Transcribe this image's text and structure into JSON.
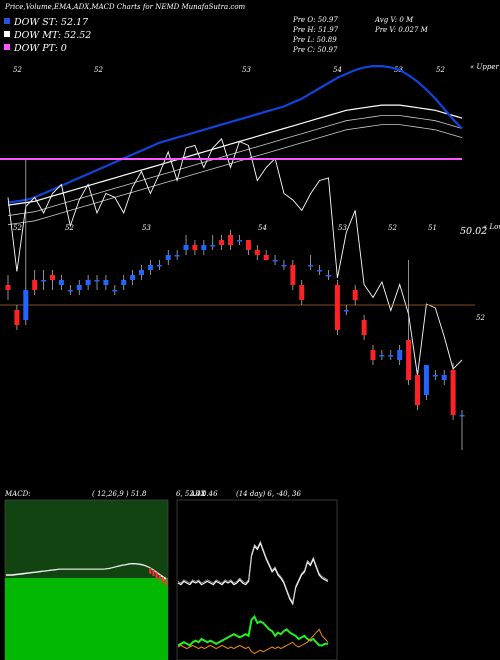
{
  "header": {
    "title": "Price,Volume,EMA,ADX,MACD Charts for NEMD MunafaSutra.com",
    "legend": [
      {
        "label": "DOW ST: 52.17",
        "color": "#2255dd"
      },
      {
        "label": "DOW MT: 52.52",
        "color": "#ffffff"
      },
      {
        "label": "DOW PT: 0",
        "color": "#ff55ff"
      }
    ],
    "ohlc": {
      "open": "Pre   O: 50.97",
      "high": "Pre   H: 51.97",
      "low": "Pre   L: 50.89",
      "close": "Pre   C: 50.97"
    },
    "volume": {
      "avg": "Avg V: 0   M",
      "pre": "Pre   V: 0.027 M"
    }
  },
  "top_panel": {
    "top_labels": [
      "52",
      "52",
      "53",
      "54",
      "53",
      "52"
    ],
    "bottom_labels": [
      "52",
      "52",
      "53",
      "54",
      "53",
      "52",
      "51"
    ],
    "last_value": "50.02",
    "upper_tag": "« Upper",
    "lower_tag": "« Lower"
  },
  "candle_panel": {
    "price_line_label": "52"
  },
  "macd_panel": {
    "title": "MACD:",
    "params": "( 12,26,9 ) 51.8",
    "values": "6, 52.43",
    "trail": "0.46"
  },
  "adx_panel": {
    "title": "ADX",
    "params": "(14  day) 6,  -40,  36"
  },
  "chart_data": {
    "type": "candlestick",
    "colors": {
      "up": "#2266ff",
      "down": "#ff2222",
      "ema_short": "#1144dd",
      "ema_long": "#ffffff",
      "pt_line": "#ff55ff",
      "price_line": "#aa6633",
      "macd_bg": "#114411",
      "adx_plus": "#22ee22",
      "adx_minus": "#ee8811",
      "adx_line": "#ffffff"
    },
    "candles": [
      [
        51.75,
        51.7,
        51.85,
        51.6
      ],
      [
        51.5,
        51.35,
        51.55,
        51.3
      ],
      [
        51.4,
        51.7,
        53.0,
        51.35
      ],
      [
        51.8,
        51.7,
        51.9,
        51.65
      ],
      [
        51.8,
        51.8,
        51.9,
        51.7
      ],
      [
        51.85,
        51.8,
        51.9,
        51.7
      ],
      [
        51.75,
        51.8,
        51.85,
        51.7
      ],
      [
        51.7,
        51.7,
        51.75,
        51.65
      ],
      [
        51.7,
        51.75,
        51.8,
        51.65
      ],
      [
        51.75,
        51.8,
        51.85,
        51.7
      ],
      [
        51.8,
        51.8,
        51.85,
        51.7
      ],
      [
        51.75,
        51.8,
        51.85,
        51.7
      ],
      [
        51.7,
        51.7,
        51.75,
        51.65
      ],
      [
        51.75,
        51.8,
        51.85,
        51.7
      ],
      [
        51.8,
        51.85,
        51.9,
        51.75
      ],
      [
        51.85,
        51.9,
        51.95,
        51.8
      ],
      [
        51.9,
        51.95,
        52.0,
        51.85
      ],
      [
        51.95,
        51.95,
        52.0,
        51.9
      ],
      [
        52.0,
        52.05,
        52.1,
        51.95
      ],
      [
        52.05,
        52.05,
        52.1,
        52.0
      ],
      [
        52.1,
        52.15,
        52.25,
        52.05
      ],
      [
        52.15,
        52.1,
        52.2,
        52.05
      ],
      [
        52.1,
        52.15,
        52.2,
        52.05
      ],
      [
        52.15,
        52.15,
        52.25,
        52.1
      ],
      [
        52.2,
        52.15,
        52.25,
        52.1
      ],
      [
        52.25,
        52.15,
        52.3,
        52.1
      ],
      [
        52.2,
        52.2,
        52.25,
        52.15
      ],
      [
        52.2,
        52.1,
        52.2,
        52.05
      ],
      [
        52.1,
        52.05,
        52.15,
        52.0
      ],
      [
        52.05,
        52.0,
        52.1,
        52.0
      ],
      [
        52.0,
        52.0,
        52.05,
        51.95
      ],
      [
        51.95,
        51.95,
        52.0,
        51.9
      ],
      [
        51.95,
        51.75,
        52.0,
        51.7
      ],
      [
        51.75,
        51.6,
        51.8,
        51.55
      ],
      [
        51.95,
        51.95,
        52.05,
        51.9
      ],
      [
        51.9,
        51.9,
        51.95,
        51.85
      ],
      [
        51.85,
        51.85,
        51.9,
        51.8
      ],
      [
        51.75,
        51.3,
        51.8,
        51.25
      ],
      [
        51.5,
        51.5,
        51.55,
        51.45
      ],
      [
        51.7,
        51.6,
        51.75,
        51.55
      ],
      [
        51.4,
        51.25,
        51.45,
        51.2
      ],
      [
        51.1,
        51.0,
        51.15,
        50.95
      ],
      [
        51.05,
        51.05,
        51.1,
        51.0
      ],
      [
        51.05,
        51.05,
        51.1,
        51.0
      ],
      [
        51.0,
        51.1,
        51.15,
        50.95
      ],
      [
        51.2,
        50.8,
        52.0,
        50.75
      ],
      [
        50.85,
        50.55,
        50.9,
        50.5
      ],
      [
        50.65,
        50.95,
        50.95,
        50.6
      ],
      [
        50.85,
        50.85,
        50.9,
        50.8
      ],
      [
        50.8,
        50.85,
        50.9,
        50.75
      ],
      [
        50.9,
        50.45,
        50.97,
        50.4
      ],
      [
        50.45,
        50.45,
        50.5,
        50.1
      ]
    ],
    "ema_short": [
      51.78,
      51.79,
      51.8,
      51.82,
      51.85,
      51.88,
      51.91,
      51.94,
      51.97,
      52.0,
      52.03,
      52.06,
      52.09,
      52.12,
      52.15,
      52.18,
      52.21,
      52.24,
      52.26,
      52.28,
      52.3,
      52.32,
      52.34,
      52.36,
      52.38,
      52.4,
      52.42,
      52.44,
      52.46,
      52.48,
      52.5,
      52.52,
      52.55,
      52.58,
      52.62,
      52.66,
      52.7,
      52.74,
      52.77,
      52.8,
      52.82,
      52.83,
      52.83,
      52.82,
      52.8,
      52.76,
      52.71,
      52.65,
      52.58,
      52.5,
      52.42,
      52.35
    ],
    "ema_long": [
      51.76,
      51.77,
      51.78,
      51.79,
      51.81,
      51.83,
      51.85,
      51.87,
      51.89,
      51.91,
      51.93,
      51.95,
      51.97,
      51.99,
      52.01,
      52.03,
      52.05,
      52.07,
      52.09,
      52.11,
      52.13,
      52.15,
      52.17,
      52.19,
      52.21,
      52.23,
      52.25,
      52.27,
      52.29,
      52.31,
      52.33,
      52.35,
      52.37,
      52.39,
      52.41,
      52.43,
      52.45,
      52.47,
      52.49,
      52.5,
      52.51,
      52.52,
      52.53,
      52.53,
      52.53,
      52.52,
      52.51,
      52.5,
      52.49,
      52.47,
      52.45,
      52.43
    ],
    "price_line": 51.55,
    "adx": {
      "adx": [
        0.45,
        0.44,
        0.46,
        0.45,
        0.44,
        0.46,
        0.45,
        0.46,
        0.44,
        0.45,
        0.46,
        0.45,
        0.44,
        0.46,
        0.45,
        0.44,
        0.46,
        0.45,
        0.46,
        0.44,
        0.45,
        0.47,
        0.45,
        0.44,
        0.46,
        0.62,
        0.68,
        0.66,
        0.7,
        0.65,
        0.6,
        0.56,
        0.52,
        0.54,
        0.5,
        0.48,
        0.45,
        0.4,
        0.35,
        0.32,
        0.42,
        0.46,
        0.5,
        0.52,
        0.58,
        0.56,
        0.6,
        0.55,
        0.5,
        0.48,
        0.47,
        0.46
      ],
      "plus": [
        0.06,
        0.07,
        0.08,
        0.07,
        0.06,
        0.08,
        0.09,
        0.08,
        0.1,
        0.09,
        0.08,
        0.09,
        0.08,
        0.07,
        0.08,
        0.09,
        0.1,
        0.11,
        0.12,
        0.13,
        0.12,
        0.11,
        0.12,
        0.13,
        0.12,
        0.22,
        0.24,
        0.2,
        0.21,
        0.2,
        0.18,
        0.16,
        0.15,
        0.12,
        0.14,
        0.13,
        0.15,
        0.16,
        0.14,
        0.13,
        0.12,
        0.1,
        0.11,
        0.12,
        0.1,
        0.09,
        0.1,
        0.08,
        0.06,
        0.06,
        0.07,
        0.07
      ],
      "minus": [
        0.05,
        0.06,
        0.05,
        0.04,
        0.05,
        0.06,
        0.05,
        0.04,
        0.05,
        0.04,
        0.05,
        0.06,
        0.05,
        0.04,
        0.05,
        0.06,
        0.05,
        0.04,
        0.05,
        0.04,
        0.05,
        0.06,
        0.05,
        0.04,
        0.05,
        0.02,
        0.01,
        0.02,
        0.03,
        0.02,
        0.03,
        0.04,
        0.05,
        0.04,
        0.05,
        0.04,
        0.05,
        0.06,
        0.07,
        0.08,
        0.06,
        0.05,
        0.06,
        0.07,
        0.08,
        0.1,
        0.12,
        0.14,
        0.16,
        0.12,
        0.1,
        0.08
      ]
    }
  }
}
